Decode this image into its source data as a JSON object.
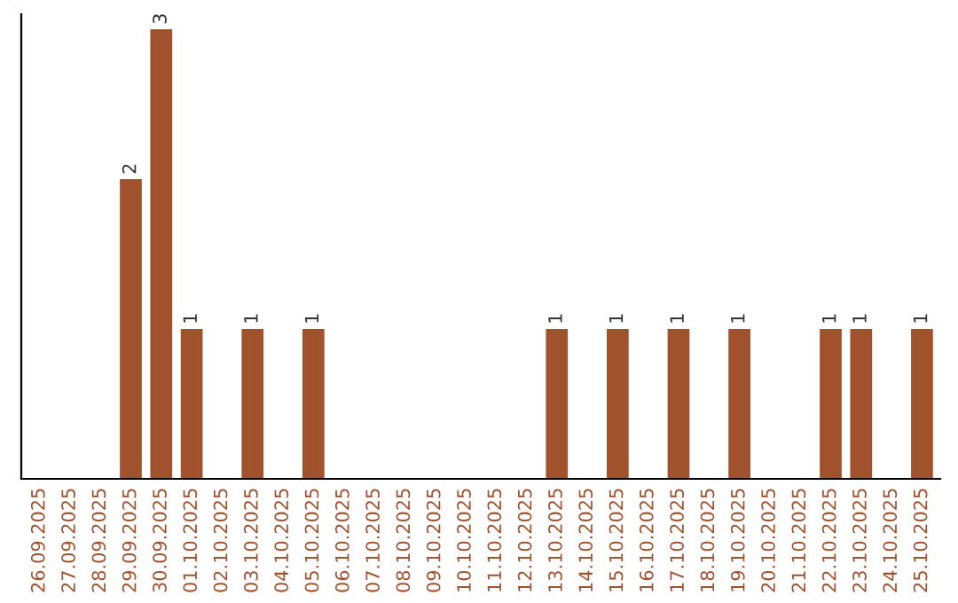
{
  "chart_data": {
    "type": "bar",
    "categories": [
      "26.09.2025",
      "27.09.2025",
      "28.09.2025",
      "29.09.2025",
      "30.09.2025",
      "01.10.2025",
      "02.10.2025",
      "03.10.2025",
      "04.10.2025",
      "05.10.2025",
      "06.10.2025",
      "07.10.2025",
      "08.10.2025",
      "09.10.2025",
      "10.10.2025",
      "11.10.2025",
      "12.10.2025",
      "13.10.2025",
      "14.10.2025",
      "15.10.2025",
      "16.10.2025",
      "17.10.2025",
      "18.10.2025",
      "19.10.2025",
      "20.10.2025",
      "21.10.2025",
      "22.10.2025",
      "23.10.2025",
      "24.10.2025",
      "25.10.2025"
    ],
    "values": [
      0,
      0,
      0,
      2,
      3,
      1,
      0,
      1,
      0,
      1,
      0,
      0,
      0,
      0,
      0,
      0,
      0,
      1,
      0,
      1,
      0,
      1,
      0,
      1,
      0,
      0,
      1,
      1,
      0,
      1
    ],
    "value_labels": [
      null,
      null,
      null,
      "2",
      "3",
      "1",
      null,
      "1",
      null,
      "1",
      null,
      null,
      null,
      null,
      null,
      null,
      null,
      "1",
      null,
      "1",
      null,
      "1",
      null,
      "1",
      null,
      null,
      "1",
      "1",
      null,
      "1"
    ],
    "color": "#a0522d",
    "ylim": [
      0,
      3.1
    ],
    "tick_labels": "x",
    "grid": false,
    "legend": false
  }
}
